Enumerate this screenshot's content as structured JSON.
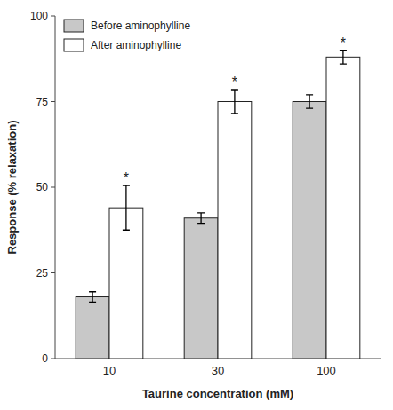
{
  "chart_data": {
    "type": "bar",
    "categories": [
      "10",
      "30",
      "100"
    ],
    "xlabel": "Taurine concentration (mM)",
    "ylabel": "Response (% relaxation)",
    "series": [
      {
        "name": "Before aminophylline",
        "color": "#c8c8c8",
        "values": [
          18,
          41,
          75
        ],
        "errors": [
          1.5,
          1.5,
          2.0
        ]
      },
      {
        "name": "After aminophylline",
        "color": "#ffffff",
        "values": [
          44,
          75,
          88
        ],
        "errors": [
          6.5,
          3.5,
          2.0
        ],
        "annotations": [
          "*",
          "*",
          "*"
        ]
      }
    ],
    "ylim": [
      0,
      100
    ],
    "yticks": [
      0,
      25,
      50,
      75,
      100
    ],
    "grid": false,
    "legend": "upper left"
  }
}
